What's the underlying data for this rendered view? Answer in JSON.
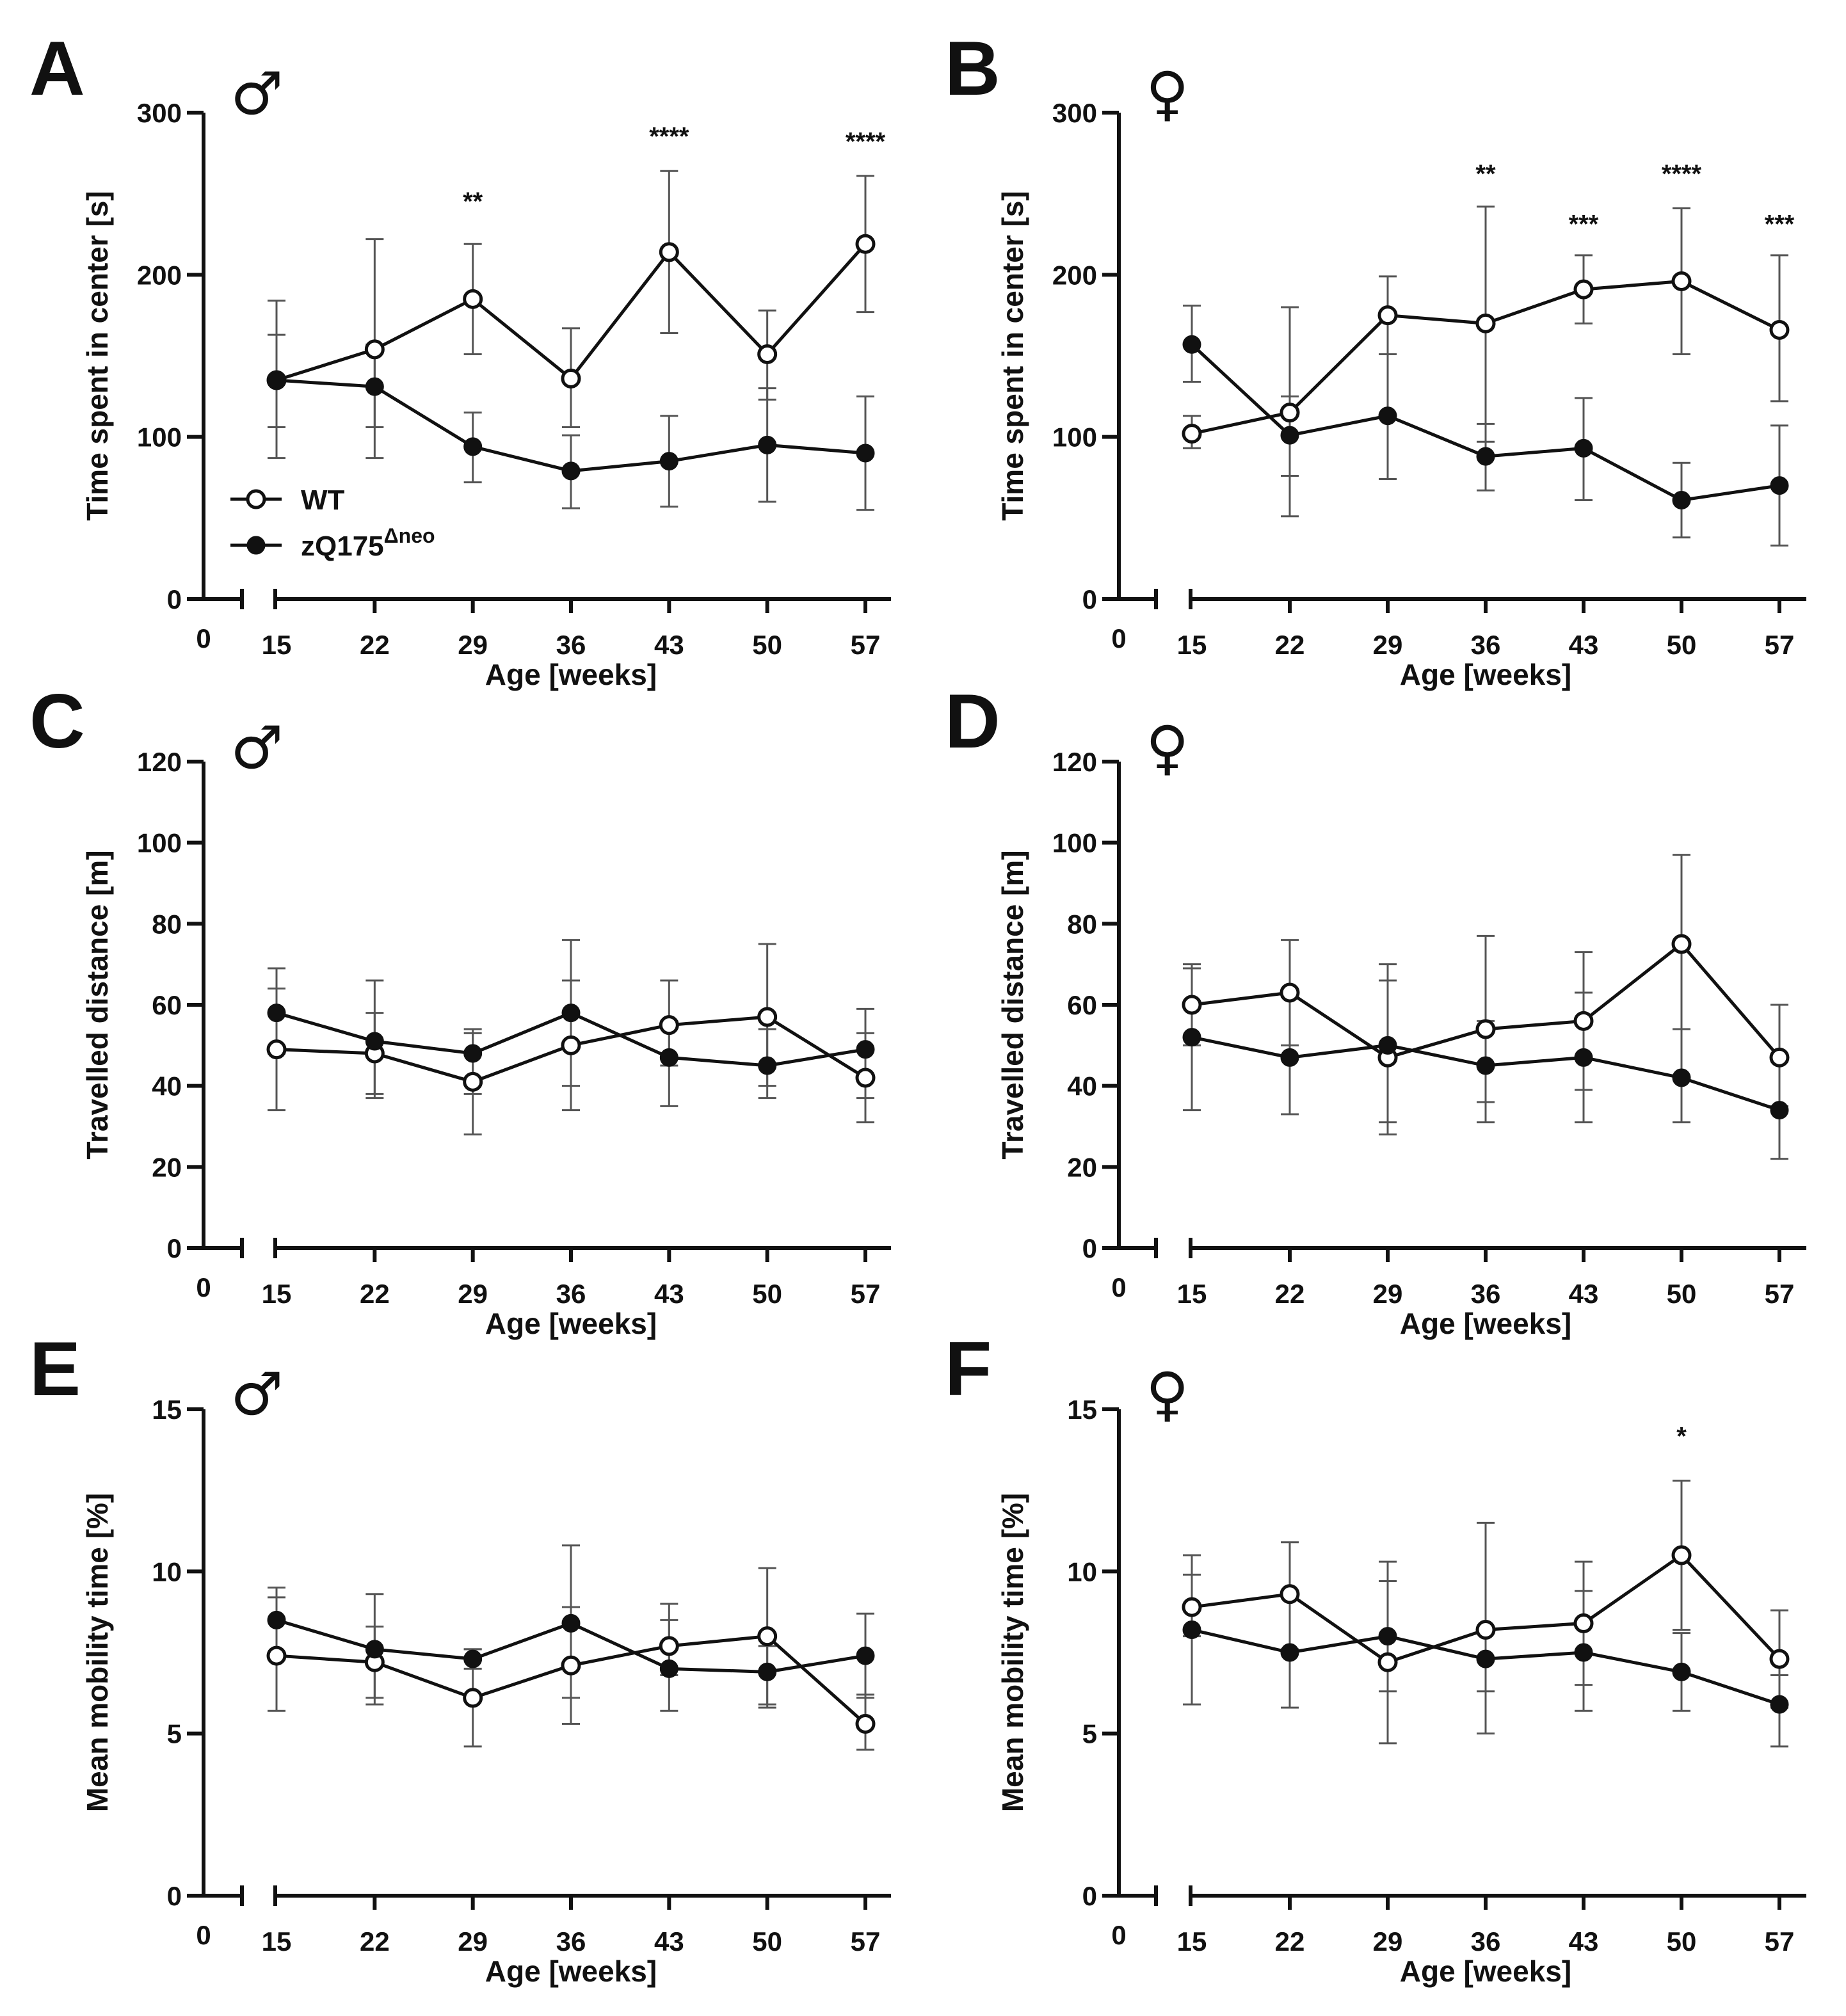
{
  "chart_data": [
    {
      "type": "line",
      "panel": "A",
      "sex_symbol": "♂",
      "ylabel": "Time spent in center [s]",
      "xlabel": "Age [weeks]",
      "ylim": [
        0,
        300
      ],
      "yticks": [
        0,
        100,
        200,
        300
      ],
      "x_zero_label": "0",
      "categories": [
        "15",
        "22",
        "29",
        "36",
        "43",
        "50",
        "57"
      ],
      "series": [
        {
          "name": "WT",
          "marker": "open",
          "values": [
            135,
            154,
            185,
            136,
            214,
            151,
            219
          ],
          "err_up": [
            163,
            222,
            219,
            167,
            264,
            178,
            261
          ],
          "err_down": [
            106,
            106,
            151,
            106,
            164,
            123,
            177
          ]
        },
        {
          "name": "zQ175Δneo",
          "marker": "filled",
          "values": [
            135,
            131,
            94,
            79,
            85,
            95,
            90
          ],
          "err_up": [
            184,
            157,
            115,
            101,
            113,
            130,
            125
          ],
          "err_down": [
            87,
            87,
            72,
            56,
            57,
            60,
            55
          ]
        }
      ],
      "significance": [
        {
          "x": "29",
          "label": "**",
          "y": 240
        },
        {
          "x": "43",
          "label": "****",
          "y": 280
        },
        {
          "x": "57",
          "label": "****",
          "y": 277
        }
      ],
      "legend": [
        {
          "label": "WT",
          "marker": "open"
        },
        {
          "label": "zQ175",
          "superscript": "Δneo",
          "marker": "filled"
        }
      ]
    },
    {
      "type": "line",
      "panel": "B",
      "sex_symbol": "♀",
      "ylabel": "Time spent in center [s]",
      "xlabel": "Age [weeks]",
      "ylim": [
        0,
        300
      ],
      "yticks": [
        0,
        100,
        200,
        300
      ],
      "x_zero_label": "0",
      "categories": [
        "15",
        "22",
        "29",
        "36",
        "43",
        "50",
        "57"
      ],
      "series": [
        {
          "name": "WT",
          "marker": "open",
          "values": [
            102,
            115,
            175,
            170,
            191,
            196,
            166
          ],
          "err_up": [
            113,
            180,
            199,
            242,
            212,
            241,
            212
          ],
          "err_down": [
            93,
            51,
            151,
            97,
            170,
            151,
            122
          ]
        },
        {
          "name": "zQ175Δneo",
          "marker": "filled",
          "values": [
            157,
            101,
            113,
            88,
            93,
            61,
            70
          ],
          "err_up": [
            181,
            125,
            151,
            108,
            124,
            84,
            107
          ],
          "err_down": [
            134,
            76,
            74,
            67,
            61,
            38,
            33
          ]
        }
      ],
      "significance": [
        {
          "x": "36",
          "label": "**",
          "y": 257
        },
        {
          "x": "43",
          "label": "***",
          "y": 226
        },
        {
          "x": "50",
          "label": "****",
          "y": 257
        },
        {
          "x": "57",
          "label": "***",
          "y": 226
        }
      ]
    },
    {
      "type": "line",
      "panel": "C",
      "sex_symbol": "♂",
      "ylabel": "Travelled distance [m]",
      "xlabel": "Age [weeks]",
      "ylim": [
        0,
        120
      ],
      "yticks": [
        0,
        20,
        40,
        60,
        80,
        100,
        120
      ],
      "x_zero_label": "0",
      "categories": [
        "15",
        "22",
        "29",
        "36",
        "43",
        "50",
        "57"
      ],
      "series": [
        {
          "name": "WT",
          "marker": "open",
          "values": [
            49,
            48,
            41,
            50,
            55,
            57,
            42
          ],
          "err_up": [
            64,
            58,
            53,
            66,
            66,
            75,
            53
          ],
          "err_down": [
            34,
            37,
            28,
            34,
            45,
            40,
            37
          ]
        },
        {
          "name": "zQ175Δneo",
          "marker": "filled",
          "values": [
            58,
            51,
            48,
            58,
            47,
            45,
            49
          ],
          "err_up": [
            69,
            66,
            54,
            76,
            56,
            54,
            59
          ],
          "err_down": [
            48,
            38,
            38,
            40,
            35,
            37,
            31
          ]
        }
      ],
      "significance": []
    },
    {
      "type": "line",
      "panel": "D",
      "sex_symbol": "♀",
      "ylabel": "Travelled distance [m]",
      "xlabel": "Age [weeks]",
      "ylim": [
        0,
        120
      ],
      "yticks": [
        0,
        20,
        40,
        60,
        80,
        100,
        120
      ],
      "x_zero_label": "0",
      "categories": [
        "15",
        "22",
        "29",
        "36",
        "43",
        "50",
        "57"
      ],
      "series": [
        {
          "name": "WT",
          "marker": "open",
          "values": [
            60,
            63,
            47,
            54,
            56,
            75,
            47
          ],
          "err_up": [
            70,
            76,
            66,
            77,
            73,
            97,
            60
          ],
          "err_down": [
            50,
            50,
            28,
            36,
            39,
            54,
            35
          ]
        },
        {
          "name": "zQ175Δneo",
          "marker": "filled",
          "values": [
            52,
            47,
            50,
            45,
            47,
            42,
            34
          ],
          "err_up": [
            69,
            62,
            70,
            56,
            63,
            54,
            46
          ],
          "err_down": [
            34,
            33,
            31,
            31,
            31,
            31,
            22
          ]
        }
      ],
      "significance": []
    },
    {
      "type": "line",
      "panel": "E",
      "sex_symbol": "♂",
      "ylabel": "Mean mobility time [%]",
      "xlabel": "Age [weeks]",
      "ylim": [
        0,
        15
      ],
      "yticks": [
        0,
        5,
        10,
        15
      ],
      "x_zero_label": "0",
      "categories": [
        "15",
        "22",
        "29",
        "36",
        "43",
        "50",
        "57"
      ],
      "series": [
        {
          "name": "WT",
          "marker": "open",
          "values": [
            7.4,
            7.2,
            6.1,
            7.1,
            7.7,
            8.0,
            5.3
          ],
          "err_up": [
            9.2,
            8.3,
            7.6,
            8.9,
            8.5,
            10.1,
            6.2
          ],
          "err_down": [
            5.7,
            6.1,
            4.6,
            5.3,
            6.8,
            5.9,
            4.5
          ]
        },
        {
          "name": "zQ175Δneo",
          "marker": "filled",
          "values": [
            8.5,
            7.6,
            7.3,
            8.4,
            7.0,
            6.9,
            7.4
          ],
          "err_up": [
            9.5,
            9.3,
            7.6,
            10.8,
            9.0,
            7.7,
            8.7
          ],
          "err_down": [
            7.5,
            5.9,
            7.0,
            6.1,
            5.7,
            5.8,
            6.1
          ]
        }
      ],
      "significance": []
    },
    {
      "type": "line",
      "panel": "F",
      "sex_symbol": "♀",
      "ylabel": "Mean mobility time [%]",
      "xlabel": "Age [weeks]",
      "ylim": [
        0,
        15
      ],
      "yticks": [
        0,
        5,
        10,
        15
      ],
      "x_zero_label": "0",
      "categories": [
        "15",
        "22",
        "29",
        "36",
        "43",
        "50",
        "57"
      ],
      "series": [
        {
          "name": "WT",
          "marker": "open",
          "values": [
            8.9,
            9.3,
            7.2,
            8.2,
            8.4,
            10.5,
            7.3
          ],
          "err_up": [
            10.5,
            10.9,
            10.3,
            11.5,
            10.3,
            12.8,
            8.8
          ],
          "err_down": [
            8.0,
            7.6,
            4.7,
            5.0,
            6.5,
            8.2,
            5.8
          ]
        },
        {
          "name": "zQ175Δneo",
          "marker": "filled",
          "values": [
            8.2,
            7.5,
            8.0,
            7.3,
            7.5,
            6.9,
            5.9
          ],
          "err_up": [
            9.9,
            9.2,
            9.7,
            8.2,
            9.4,
            8.1,
            6.8
          ],
          "err_down": [
            5.9,
            5.8,
            6.3,
            6.3,
            5.7,
            5.7,
            4.6
          ]
        }
      ],
      "significance": [
        {
          "x": "50",
          "label": "*",
          "y": 13.9
        }
      ]
    }
  ]
}
